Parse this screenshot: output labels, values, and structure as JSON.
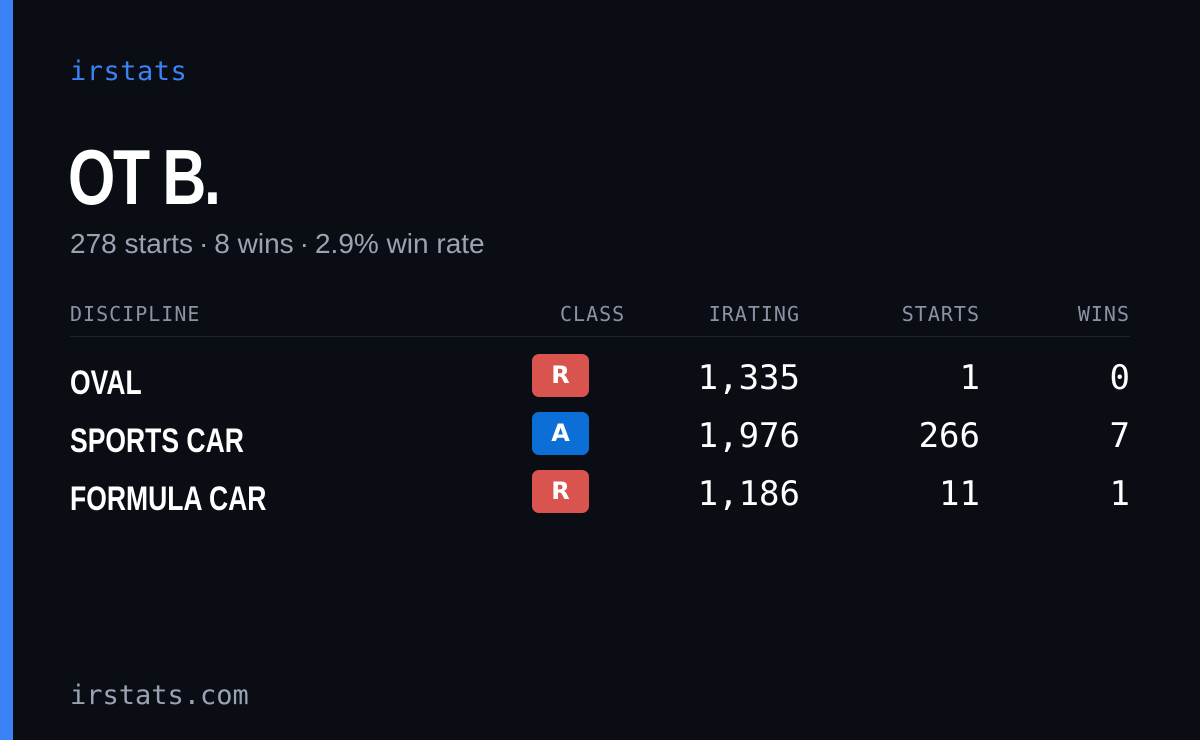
{
  "brand": "irstats",
  "driver": {
    "name": "OT B."
  },
  "summary": {
    "starts": "278 starts",
    "wins": "8 wins",
    "win_rate": "2.9% win rate",
    "separator": "·"
  },
  "table": {
    "headers": {
      "discipline": "DISCIPLINE",
      "class": "CLASS",
      "irating": "IRATING",
      "starts": "STARTS",
      "wins": "WINS"
    },
    "rows": [
      {
        "discipline": "OVAL",
        "class": "R",
        "class_color": "#d9534f",
        "irating": "1,335",
        "starts": "1",
        "wins": "0"
      },
      {
        "discipline": "SPORTS CAR",
        "class": "A",
        "class_color": "#0b6fd6",
        "irating": "1,976",
        "starts": "266",
        "wins": "7"
      },
      {
        "discipline": "FORMULA CAR",
        "class": "R",
        "class_color": "#d9534f",
        "irating": "1,186",
        "starts": "11",
        "wins": "1"
      }
    ]
  },
  "footer": "irstats.com",
  "colors": {
    "accent": "#3b82f6",
    "background": "#0a0d14"
  }
}
